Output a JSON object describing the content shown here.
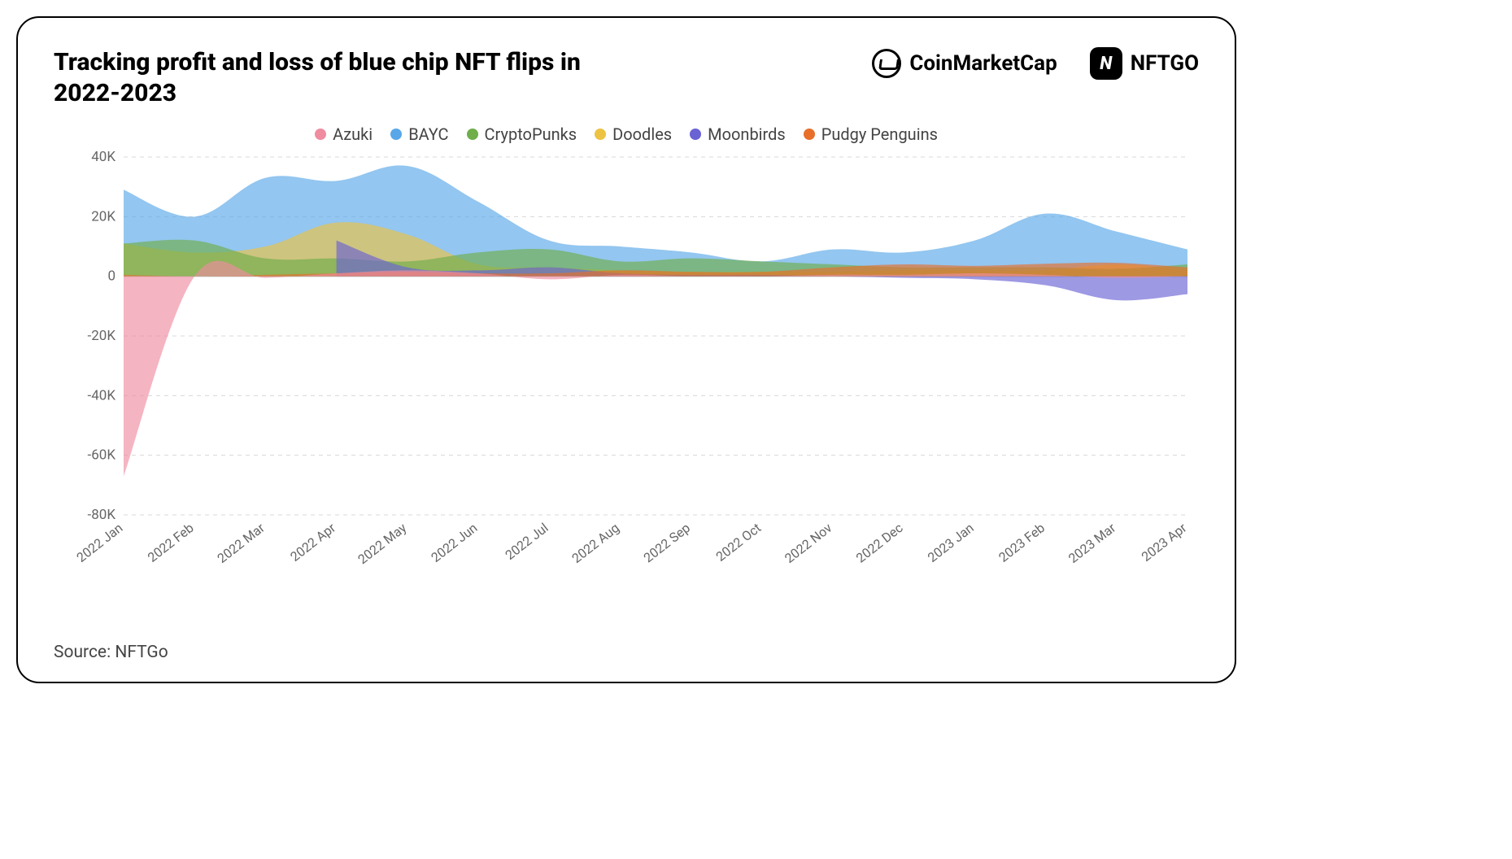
{
  "title": "Tracking profit and loss of blue chip NFT flips in 2022-2023",
  "brand1": "CoinMarketCap",
  "brand2": "NFTGO",
  "nftgo_badge": "N",
  "source": "Source: NFTGo",
  "chart": {
    "type": "area",
    "background_color": "#ffffff",
    "grid_color": "#d8d8d8",
    "zero_line_color": "#bfbfbf",
    "ylim": [
      -80000,
      40000
    ],
    "ytick_step": 20000,
    "yticks": [
      "40K",
      "20K",
      "0",
      "-20K",
      "-40K",
      "-60K",
      "-80K"
    ],
    "ytick_values": [
      40000,
      20000,
      0,
      -20000,
      -40000,
      -60000,
      -80000
    ],
    "categories": [
      "2022 Jan",
      "2022 Feb",
      "2022 Mar",
      "2022 Apr",
      "2022 May",
      "2022 Jun",
      "2022 Jul",
      "2022 Aug",
      "2022 Sep",
      "2022 Oct",
      "2022 Nov",
      "2022 Dec",
      "2023 Jan",
      "2023 Feb",
      "2023 Mar",
      "2023 Apr"
    ],
    "series": [
      {
        "name": "Azuki",
        "color": "#f08ca0",
        "values": [
          -67000,
          0,
          -500,
          1000,
          2000,
          1000,
          -1000,
          500,
          0,
          0,
          500,
          500,
          1000,
          500,
          -500,
          0
        ]
      },
      {
        "name": "BAYC",
        "color": "#59a7e8",
        "values": [
          29000,
          20000,
          33000,
          32000,
          37000,
          25000,
          12000,
          10000,
          8000,
          5000,
          9000,
          8000,
          12000,
          21000,
          15000,
          9000
        ]
      },
      {
        "name": "CryptoPunks",
        "color": "#6fae4a",
        "values": [
          11000,
          12000,
          6000,
          6000,
          5000,
          8000,
          9000,
          5000,
          6000,
          5000,
          4000,
          3000,
          3000,
          3000,
          2500,
          4000
        ]
      },
      {
        "name": "Doodles",
        "color": "#ecc342",
        "values": [
          11000,
          8000,
          10000,
          18000,
          14000,
          4000,
          3000,
          2000,
          1500,
          1500,
          1500,
          2000,
          2000,
          2000,
          4000,
          2000
        ]
      },
      {
        "name": "Moonbirds",
        "color": "#6a63d4",
        "values": [
          null,
          null,
          null,
          12000,
          3000,
          2000,
          3000,
          1000,
          500,
          500,
          0,
          -500,
          -1000,
          -3000,
          -8000,
          -6000
        ]
      },
      {
        "name": "Pudgy Penguins",
        "color": "#e86f29",
        "values": [
          500,
          0,
          500,
          1000,
          1500,
          1000,
          1000,
          2000,
          1500,
          1500,
          3000,
          4000,
          3500,
          4200,
          4500,
          3000
        ]
      }
    ],
    "fill_opacity": 0.65,
    "legend_fontsize": 20,
    "axis_fontsize": 17,
    "x_label_rotation": -38
  }
}
